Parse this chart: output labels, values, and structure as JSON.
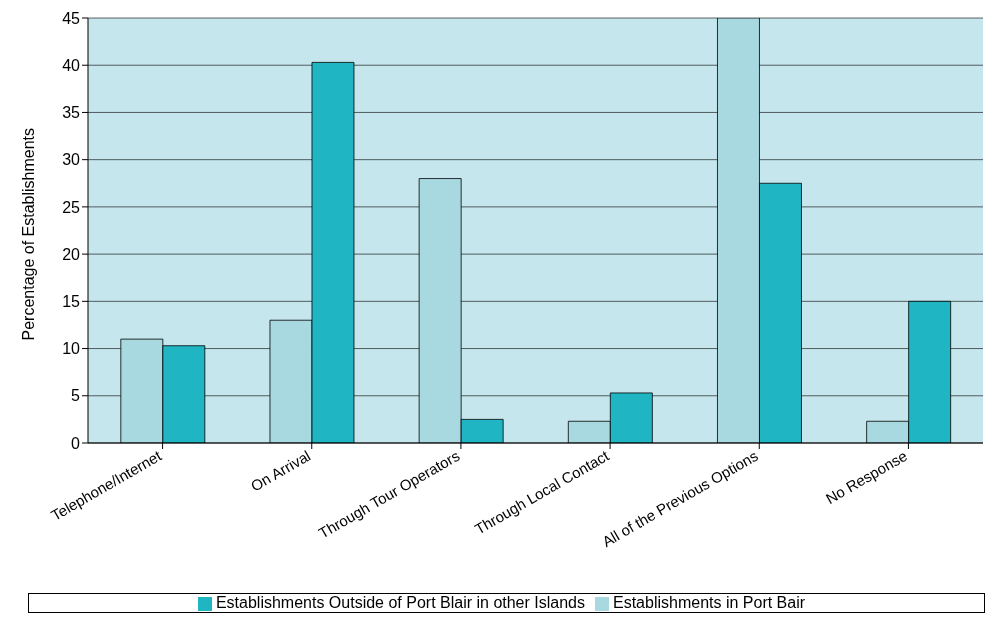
{
  "chart_data": {
    "type": "bar",
    "ylabel": "Percentage of Establishments",
    "categories": [
      "Telephone/Internet",
      "On Arrival",
      "Through Tour Operators",
      "Through Local Contact",
      "All of the Previous Options",
      "No Response"
    ],
    "series": [
      {
        "name": "Establishments in Port Bair",
        "color": "#a8d8e0",
        "values": [
          11,
          13,
          28,
          2.3,
          45,
          2.3
        ]
      },
      {
        "name": "Establishments Outside of Port Blair in other Islands",
        "color": "#1fb5c3",
        "values": [
          10.3,
          40.3,
          2.5,
          5.3,
          27.5,
          15
        ]
      }
    ],
    "ylim": [
      0,
      45
    ],
    "yticks": [
      0,
      5,
      10,
      15,
      20,
      25,
      30,
      35,
      40,
      45
    ],
    "grid": "y",
    "legend": "bottom"
  }
}
